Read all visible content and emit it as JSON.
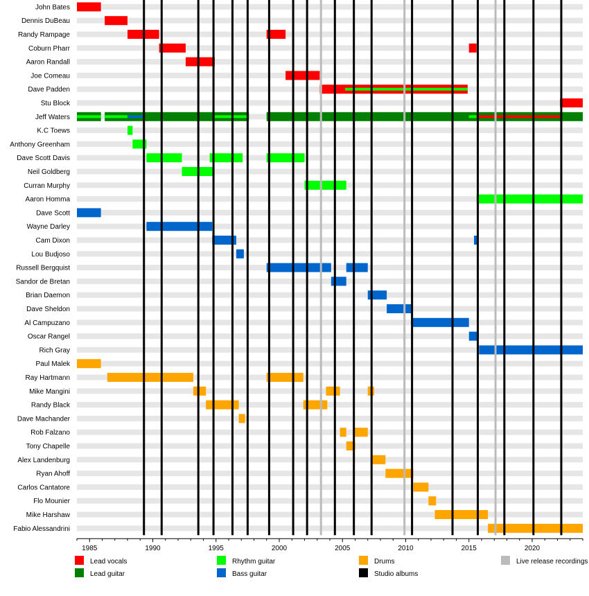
{
  "chart_data": {
    "type": "timeline",
    "title": "",
    "xlabel": "",
    "ylabel": "",
    "xlim": [
      1984.0,
      2024.0
    ],
    "x_ticks": [
      1985,
      1990,
      1995,
      2000,
      2005,
      2010,
      2015,
      2020
    ],
    "colors": {
      "lead_vocals": "#ff0000",
      "lead_guitar": "#008000",
      "rhythm_guitar": "#00ff00",
      "bass_guitar": "#0066cc",
      "drums": "#ffa500",
      "studio_albums": "#000000",
      "live_release_recordings": "#bbbbbb",
      "row_stripe": "#e6e6e6"
    },
    "legend": [
      {
        "role": "lead_vocals",
        "label": "Lead vocals"
      },
      {
        "role": "lead_guitar",
        "label": "Lead guitar"
      },
      {
        "role": "rhythm_guitar",
        "label": "Rhythm guitar"
      },
      {
        "role": "bass_guitar",
        "label": "Bass guitar"
      },
      {
        "role": "drums",
        "label": "Drums"
      },
      {
        "role": "studio_albums",
        "label": "Studio albums"
      },
      {
        "role": "live_release_recordings",
        "label": "Live release recordings"
      }
    ],
    "studio_albums": [
      1989.3,
      1990.7,
      1993.6,
      1994.8,
      1996.3,
      1997.5,
      1999.2,
      2001.1,
      2002.2,
      2004.4,
      2005.9,
      2007.3,
      2010.5,
      2013.7,
      2015.7,
      2017.8,
      2020.1,
      2022.3
    ],
    "live_releases": [
      2003.3,
      2009.9,
      2017.1
    ],
    "members": [
      {
        "name": "John Bates",
        "bars": [
          {
            "role": "lead_vocals",
            "start": 1984.0,
            "end": 1985.9
          }
        ]
      },
      {
        "name": "Dennis DuBeau",
        "bars": [
          {
            "role": "lead_vocals",
            "start": 1986.2,
            "end": 1988.0
          }
        ]
      },
      {
        "name": "Randy Rampage",
        "bars": [
          {
            "role": "lead_vocals",
            "start": 1988.0,
            "end": 1990.5
          },
          {
            "role": "lead_vocals",
            "start": 1999.0,
            "end": 2000.5
          }
        ]
      },
      {
        "name": "Coburn Pharr",
        "bars": [
          {
            "role": "lead_vocals",
            "start": 1990.5,
            "end": 1992.6
          },
          {
            "role": "lead_vocals",
            "start": 2015.0,
            "end": 2015.6
          }
        ]
      },
      {
        "name": "Aaron Randall",
        "bars": [
          {
            "role": "lead_vocals",
            "start": 1992.6,
            "end": 1994.9
          }
        ]
      },
      {
        "name": "Joe Comeau",
        "bars": [
          {
            "role": "lead_vocals",
            "start": 2000.5,
            "end": 2003.2
          }
        ]
      },
      {
        "name": "Dave Padden",
        "bars": [
          {
            "role": "lead_vocals",
            "start": 2003.2,
            "end": 2014.9
          },
          {
            "role": "rhythm_guitar",
            "start": 2005.2,
            "end": 2014.9
          }
        ]
      },
      {
        "name": "Stu Block",
        "bars": [
          {
            "role": "lead_vocals",
            "start": 2022.2,
            "end": 2024.0
          }
        ]
      },
      {
        "name": "Jeff Waters",
        "bars": [
          {
            "role": "lead_guitar",
            "start": 1984.0,
            "end": 1985.9
          },
          {
            "role": "rhythm_guitar",
            "start": 1984.0,
            "end": 1985.9
          },
          {
            "role": "lead_guitar",
            "start": 1986.2,
            "end": 1997.6
          },
          {
            "role": "bass_guitar",
            "start": 1986.2,
            "end": 1989.3
          },
          {
            "role": "rhythm_guitar",
            "start": 1986.2,
            "end": 1988.0
          },
          {
            "role": "lead_vocals",
            "start": 1994.9,
            "end": 1997.6
          },
          {
            "role": "rhythm_guitar",
            "start": 1994.9,
            "end": 1997.6
          },
          {
            "role": "lead_guitar",
            "start": 1999.0,
            "end": 2024.0
          },
          {
            "role": "rhythm_guitar",
            "start": 2015.0,
            "end": 2015.6
          },
          {
            "role": "lead_vocals",
            "start": 2015.6,
            "end": 2022.2
          }
        ]
      },
      {
        "name": "K.C Toews",
        "bars": [
          {
            "role": "rhythm_guitar",
            "start": 1988.0,
            "end": 1988.4
          }
        ]
      },
      {
        "name": "Anthony Greenham",
        "bars": [
          {
            "role": "rhythm_guitar",
            "start": 1988.4,
            "end": 1989.5
          }
        ]
      },
      {
        "name": "Dave Scott Davis",
        "bars": [
          {
            "role": "rhythm_guitar",
            "start": 1989.5,
            "end": 1992.3
          },
          {
            "role": "rhythm_guitar",
            "start": 1994.5,
            "end": 1997.1
          },
          {
            "role": "rhythm_guitar",
            "start": 1999.0,
            "end": 2002.0
          }
        ]
      },
      {
        "name": "Neil Goldberg",
        "bars": [
          {
            "role": "rhythm_guitar",
            "start": 1992.3,
            "end": 1994.8
          }
        ]
      },
      {
        "name": "Curran Murphy",
        "bars": [
          {
            "role": "rhythm_guitar",
            "start": 2002.0,
            "end": 2005.3
          }
        ]
      },
      {
        "name": "Aaron Homma",
        "bars": [
          {
            "role": "rhythm_guitar",
            "start": 2015.6,
            "end": 2024.0
          }
        ]
      },
      {
        "name": "Dave Scott",
        "bars": [
          {
            "role": "bass_guitar",
            "start": 1984.0,
            "end": 1985.9
          }
        ]
      },
      {
        "name": "Wayne Darley",
        "bars": [
          {
            "role": "bass_guitar",
            "start": 1989.5,
            "end": 1994.7
          }
        ]
      },
      {
        "name": "Cam Dixon",
        "bars": [
          {
            "role": "bass_guitar",
            "start": 1994.7,
            "end": 1996.6
          },
          {
            "role": "bass_guitar",
            "start": 2015.4,
            "end": 2015.7
          }
        ]
      },
      {
        "name": "Lou Budjoso",
        "bars": [
          {
            "role": "bass_guitar",
            "start": 1996.6,
            "end": 1997.2
          }
        ]
      },
      {
        "name": "Russell Bergquist",
        "bars": [
          {
            "role": "bass_guitar",
            "start": 1999.0,
            "end": 2004.1
          },
          {
            "role": "bass_guitar",
            "start": 2005.3,
            "end": 2007.0
          }
        ]
      },
      {
        "name": "Sandor de Bretan",
        "bars": [
          {
            "role": "bass_guitar",
            "start": 2004.1,
            "end": 2005.3
          }
        ]
      },
      {
        "name": "Brian Daemon",
        "bars": [
          {
            "role": "bass_guitar",
            "start": 2007.0,
            "end": 2008.5
          }
        ]
      },
      {
        "name": "Dave Sheldon",
        "bars": [
          {
            "role": "bass_guitar",
            "start": 2008.5,
            "end": 2010.5
          }
        ]
      },
      {
        "name": "Al Campuzano",
        "bars": [
          {
            "role": "bass_guitar",
            "start": 2010.5,
            "end": 2015.0
          }
        ]
      },
      {
        "name": "Oscar Rangel",
        "bars": [
          {
            "role": "bass_guitar",
            "start": 2015.0,
            "end": 2015.7
          }
        ]
      },
      {
        "name": "Rich Gray",
        "bars": [
          {
            "role": "bass_guitar",
            "start": 2015.8,
            "end": 2024.0
          }
        ]
      },
      {
        "name": "Paul Malek",
        "bars": [
          {
            "role": "drums",
            "start": 1984.0,
            "end": 1985.9
          }
        ]
      },
      {
        "name": "Ray Hartmann",
        "bars": [
          {
            "role": "drums",
            "start": 1986.4,
            "end": 1993.2
          },
          {
            "role": "drums",
            "start": 1999.0,
            "end": 2001.9
          }
        ]
      },
      {
        "name": "Mike Mangini",
        "bars": [
          {
            "role": "drums",
            "start": 1993.2,
            "end": 1994.2
          },
          {
            "role": "drums",
            "start": 2003.7,
            "end": 2004.8
          },
          {
            "role": "drums",
            "start": 2007.0,
            "end": 2007.5
          }
        ]
      },
      {
        "name": "Randy Black",
        "bars": [
          {
            "role": "drums",
            "start": 1994.2,
            "end": 1996.8
          },
          {
            "role": "drums",
            "start": 2001.9,
            "end": 2003.8
          }
        ]
      },
      {
        "name": "Dave Machander",
        "bars": [
          {
            "role": "drums",
            "start": 1996.8,
            "end": 1997.3
          }
        ]
      },
      {
        "name": "Rob Falzano",
        "bars": [
          {
            "role": "drums",
            "start": 2004.8,
            "end": 2005.3
          },
          {
            "role": "drums",
            "start": 2005.9,
            "end": 2007.0
          }
        ]
      },
      {
        "name": "Tony Chapelle",
        "bars": [
          {
            "role": "drums",
            "start": 2005.3,
            "end": 2006.0
          }
        ]
      },
      {
        "name": "Alex Landenburg",
        "bars": [
          {
            "role": "drums",
            "start": 2007.3,
            "end": 2008.4
          }
        ]
      },
      {
        "name": "Ryan Ahoff",
        "bars": [
          {
            "role": "drums",
            "start": 2008.4,
            "end": 2010.6
          }
        ]
      },
      {
        "name": "Carlos Cantatore",
        "bars": [
          {
            "role": "drums",
            "start": 2010.6,
            "end": 2011.8
          }
        ]
      },
      {
        "name": "Flo Mounier",
        "bars": [
          {
            "role": "drums",
            "start": 2011.8,
            "end": 2012.4
          }
        ]
      },
      {
        "name": "Mike Harshaw",
        "bars": [
          {
            "role": "drums",
            "start": 2012.3,
            "end": 2016.5
          }
        ]
      },
      {
        "name": "Fabio Alessandrini",
        "bars": [
          {
            "role": "drums",
            "start": 2016.5,
            "end": 2024.0
          }
        ]
      }
    ]
  }
}
